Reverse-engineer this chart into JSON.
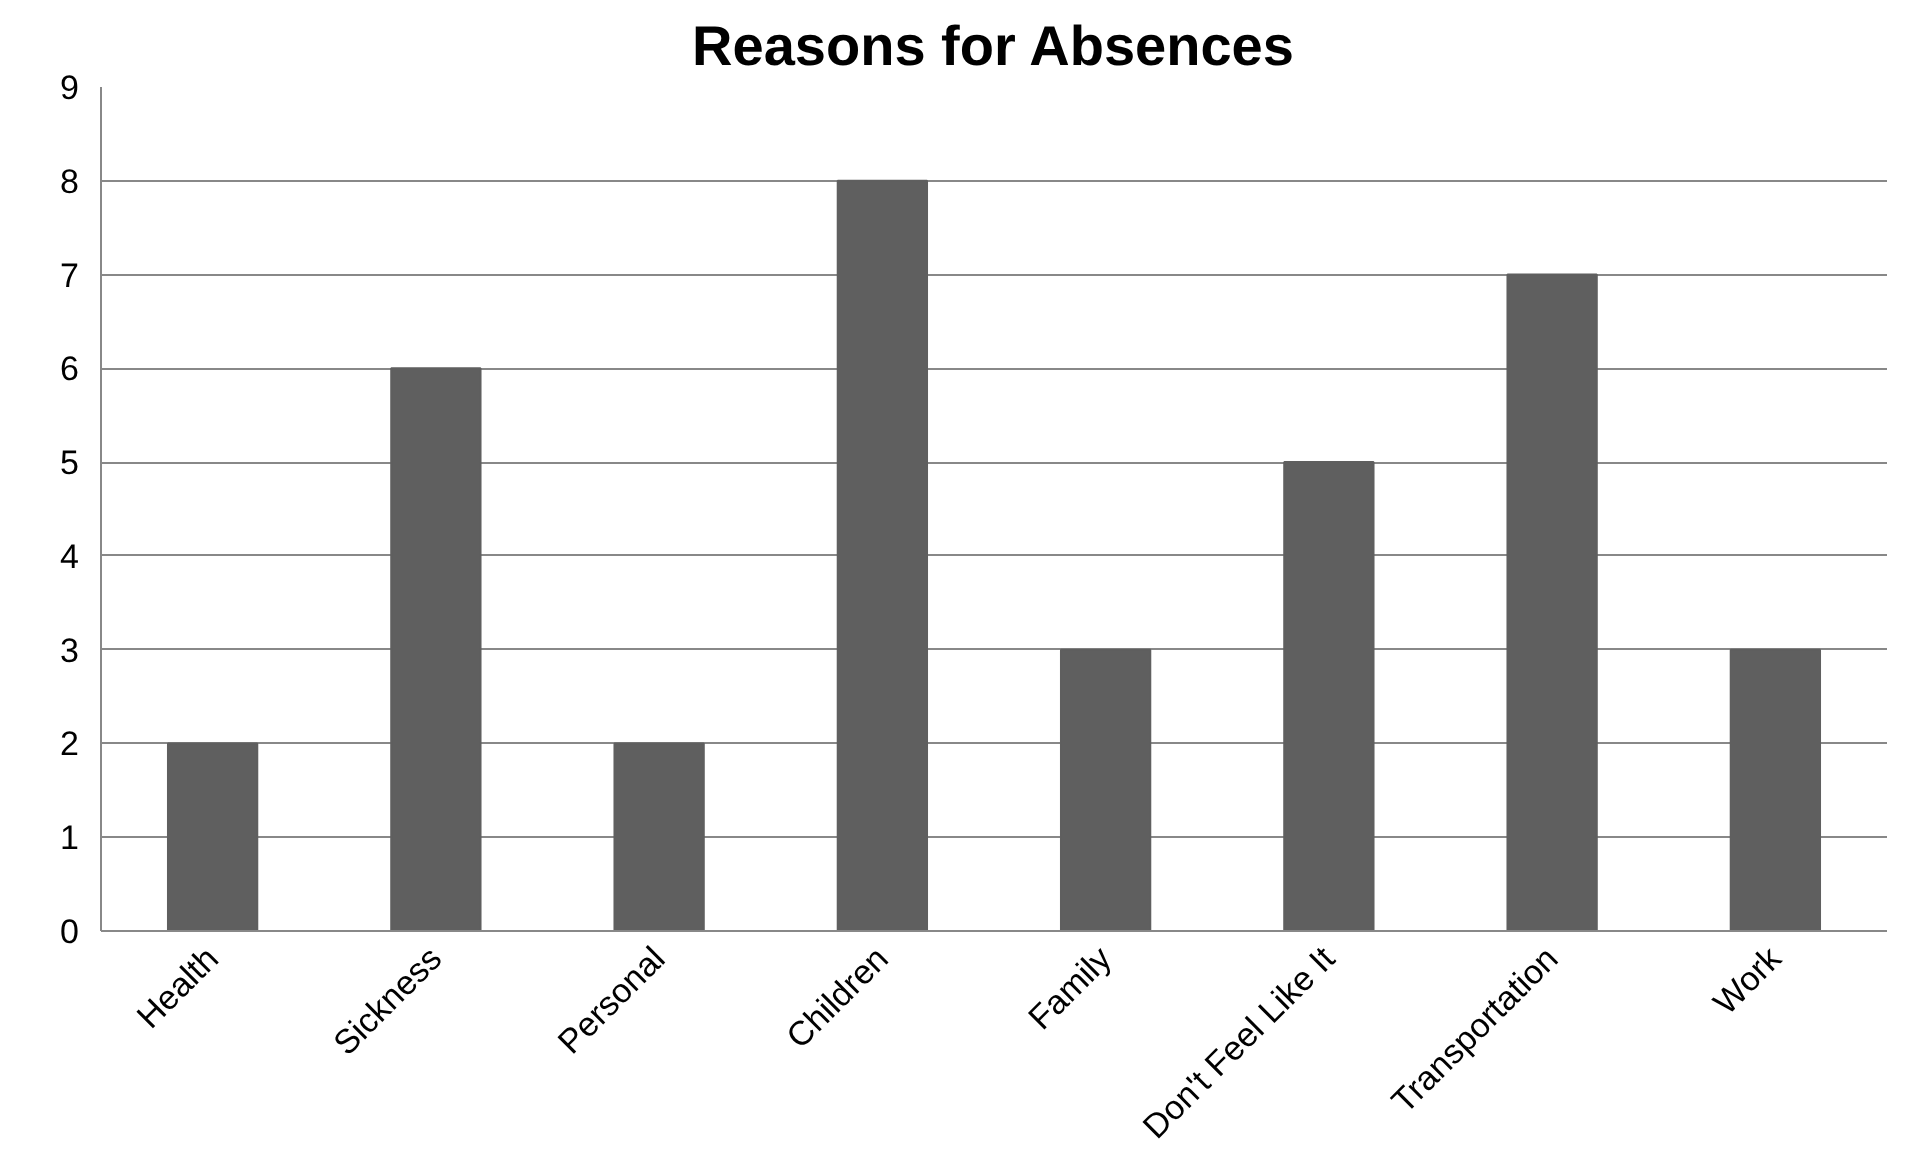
{
  "chart_data": {
    "type": "bar",
    "title": "Reasons for Absences",
    "categories": [
      "Health",
      "Sickness",
      "Personal",
      "Children",
      "Family",
      "Don't Feel Like It",
      "Transportation",
      "Work"
    ],
    "values": [
      2,
      6,
      2,
      8,
      3,
      5,
      7,
      3
    ],
    "color": "#5f5f5f",
    "ylim": [
      0,
      9
    ],
    "yticks": [
      0,
      1,
      2,
      3,
      4,
      5,
      6,
      7,
      8,
      9
    ],
    "grid": "y"
  }
}
